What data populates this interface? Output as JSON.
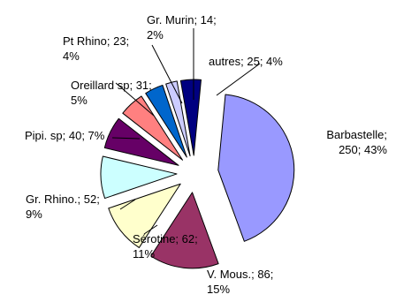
{
  "chart_data": {
    "type": "pie",
    "style": "exploded",
    "slices": [
      {
        "label": "Barbastelle",
        "value": 250,
        "percent": "43%",
        "color": "#9999FF",
        "lines": [
          "Barbastelle;",
          "250; 43%"
        ]
      },
      {
        "label": "V. Mous.",
        "value": 86,
        "percent": "15%",
        "color": "#993366",
        "lines": [
          "V. Mous.; 86;",
          "15%"
        ]
      },
      {
        "label": "Sérotine",
        "value": 62,
        "percent": "11%",
        "color": "#FFFFCC",
        "lines": [
          "Sérotine; 62;",
          "11%"
        ]
      },
      {
        "label": "Gr. Rhino.",
        "value": 52,
        "percent": "9%",
        "color": "#CCFFFF",
        "lines": [
          "Gr. Rhino.; 52;",
          "9%"
        ]
      },
      {
        "label": "Pipi. sp",
        "value": 40,
        "percent": "7%",
        "color": "#660066",
        "lines": [
          "Pipi. sp; 40; 7%"
        ]
      },
      {
        "label": "Oreillard sp",
        "value": 31,
        "percent": "5%",
        "color": "#FF8080",
        "lines": [
          "Oreillard sp; 31;",
          "5%"
        ]
      },
      {
        "label": "Pt Rhino",
        "value": 23,
        "percent": "4%",
        "color": "#0066CC",
        "lines": [
          "Pt Rhino; 23;",
          "4%"
        ]
      },
      {
        "label": "Gr. Murin",
        "value": 14,
        "percent": "2%",
        "color": "#CCCCFF",
        "lines": [
          "Gr. Murin; 14;",
          "2%"
        ]
      },
      {
        "label": "autres",
        "value": 25,
        "percent": "4%",
        "color": "#000080",
        "lines": [
          "autres; 25; 4%"
        ]
      }
    ]
  }
}
